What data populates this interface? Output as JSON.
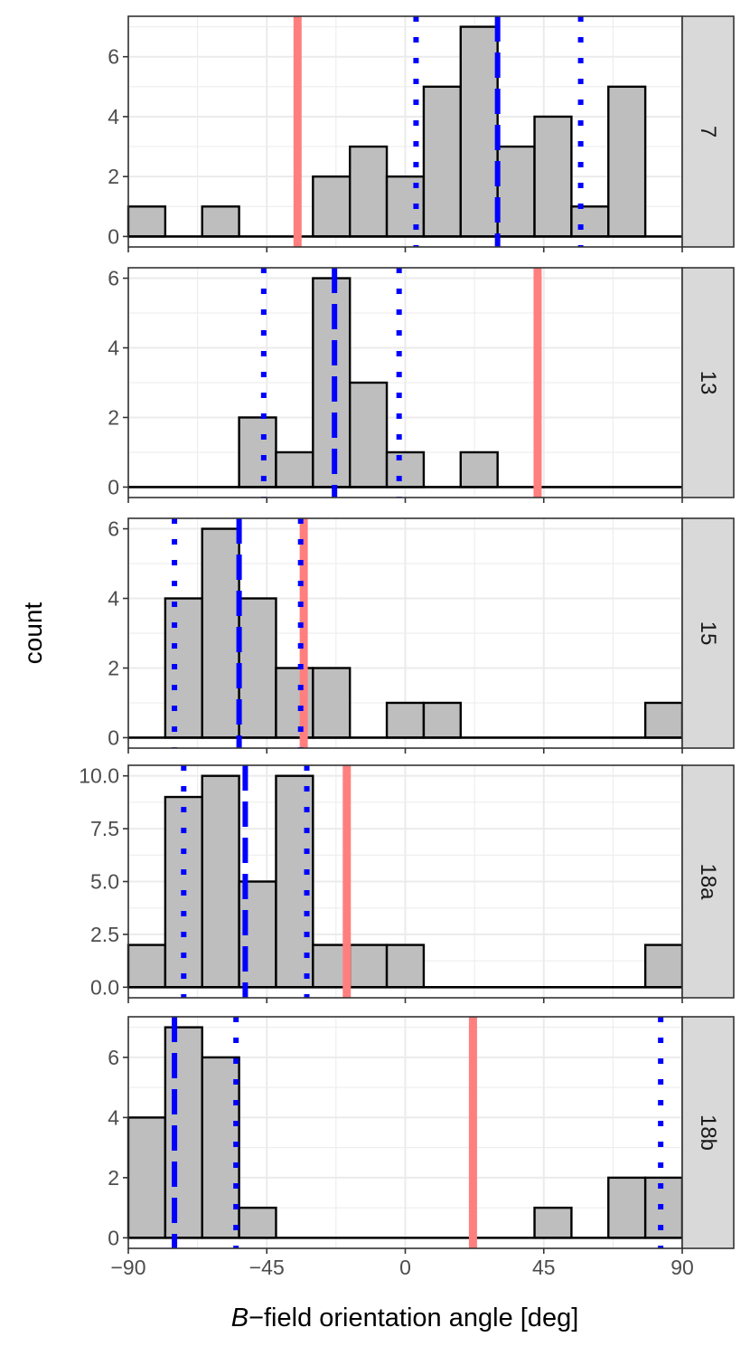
{
  "chart_data": {
    "type": "histogram",
    "xlabel": "B-field orientation angle [deg]",
    "xlabel_italic_part": "B",
    "xlabel_rest": "−field orientation angle [deg]",
    "ylabel": "count",
    "xlim": [
      -90,
      90
    ],
    "x_ticks": [
      -90,
      -45,
      0,
      45,
      90
    ],
    "x_tick_labels": [
      "−90",
      "−45",
      "0",
      "45",
      "90"
    ],
    "bin_width": 12,
    "bin_start": -90,
    "colors": {
      "bar_fill": "#bebebe",
      "bar_stroke": "#000000",
      "red_line": "#ff7f7f",
      "blue_line": "#0000ff",
      "strip_fill": "#d9d9d9",
      "grid": "#ebebeb"
    },
    "panels": [
      {
        "label": "7",
        "ylim": [
          -0.35,
          7.35
        ],
        "y_ticks": [
          0,
          2,
          4,
          6
        ],
        "y_tick_labels": [
          "0",
          "2",
          "4",
          "6"
        ],
        "counts": [
          1,
          0,
          1,
          0,
          0,
          2,
          3,
          2,
          5,
          7,
          3,
          4,
          1,
          5,
          0
        ],
        "red_line": -35,
        "blue_dashed": 30,
        "blue_dotted": [
          3.5,
          57
        ]
      },
      {
        "label": "13",
        "ylim": [
          -0.3,
          6.3
        ],
        "y_ticks": [
          0,
          2,
          4,
          6
        ],
        "y_tick_labels": [
          "0",
          "2",
          "4",
          "6"
        ],
        "counts": [
          0,
          0,
          0,
          2,
          1,
          6,
          3,
          1,
          0,
          1,
          0,
          0,
          0,
          0,
          0
        ],
        "red_line": 43,
        "blue_dashed": -23,
        "blue_dotted": [
          -46,
          -2
        ]
      },
      {
        "label": "15",
        "ylim": [
          -0.3,
          6.3
        ],
        "y_ticks": [
          0,
          2,
          4,
          6
        ],
        "y_tick_labels": [
          "0",
          "2",
          "4",
          "6"
        ],
        "counts": [
          0,
          4,
          6,
          4,
          2,
          2,
          0,
          1,
          1,
          0,
          0,
          0,
          0,
          0,
          1
        ],
        "red_line": -33,
        "blue_dashed": -54,
        "blue_dotted": [
          -75,
          -34
        ]
      },
      {
        "label": "18a",
        "ylim": [
          -0.5,
          10.5
        ],
        "y_ticks": [
          0,
          2.5,
          5,
          7.5,
          10
        ],
        "y_tick_labels": [
          "0.0",
          "2.5",
          "5.0",
          "7.5",
          "10.0"
        ],
        "counts": [
          2,
          9,
          10,
          5,
          10,
          2,
          2,
          2,
          0,
          0,
          0,
          0,
          0,
          0,
          2
        ],
        "red_line": -19,
        "blue_dashed": -52,
        "blue_dotted": [
          -72,
          -32
        ]
      },
      {
        "label": "18b",
        "ylim": [
          -0.35,
          7.35
        ],
        "y_ticks": [
          0,
          2,
          4,
          6
        ],
        "y_tick_labels": [
          "0",
          "2",
          "4",
          "6"
        ],
        "counts": [
          4,
          7,
          6,
          1,
          0,
          0,
          0,
          0,
          0,
          0,
          0,
          1,
          0,
          2,
          2
        ],
        "red_line": 22,
        "blue_dashed": -75,
        "blue_dotted": [
          -55,
          83
        ]
      }
    ]
  }
}
